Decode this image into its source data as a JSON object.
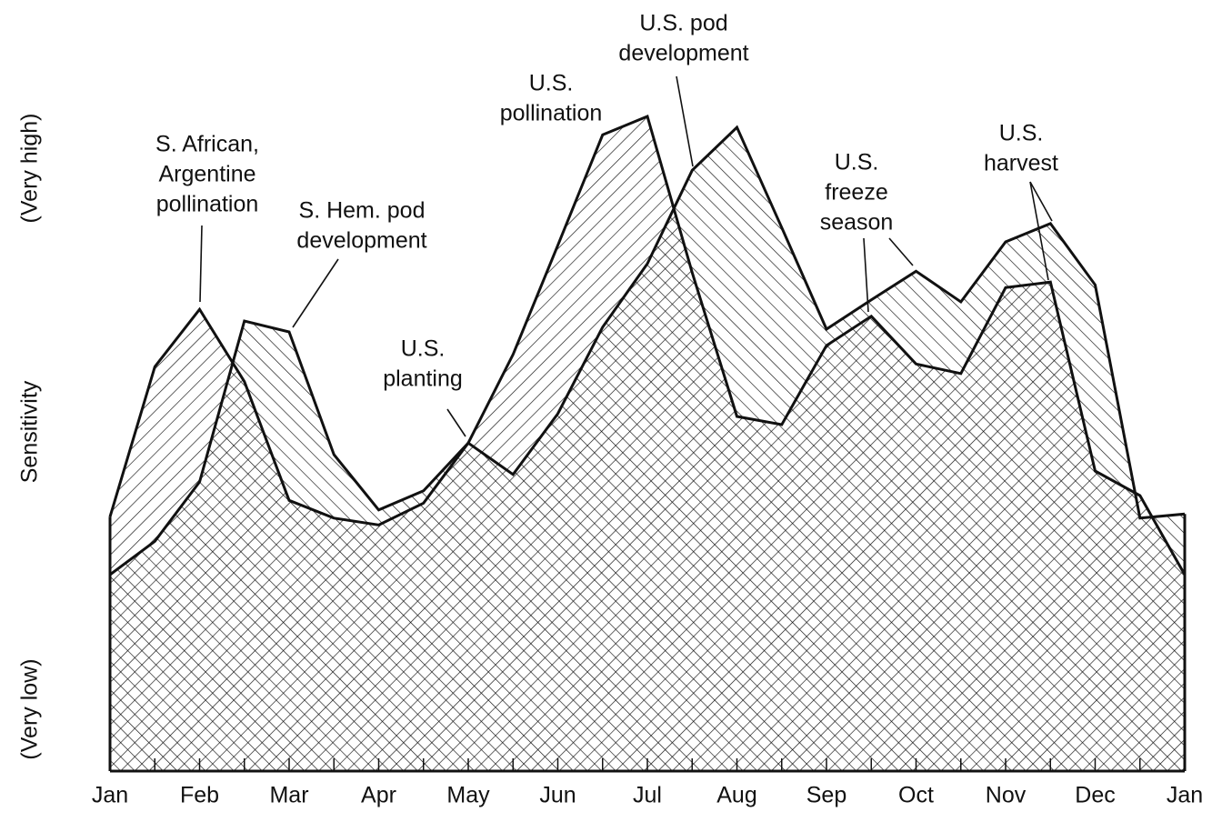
{
  "chart_data": {
    "type": "area",
    "categories": [
      "Jan",
      null,
      "Feb",
      null,
      "Mar",
      null,
      "Apr",
      null,
      "May",
      null,
      "Jun",
      null,
      "Jul",
      null,
      "Aug",
      null,
      "Sep",
      null,
      "Oct",
      null,
      "Nov",
      null,
      "Dec",
      null,
      "Jan"
    ],
    "ylim": [
      0,
      100
    ],
    "y_labels": [
      "(Very low)",
      "Sensitivity",
      "(Very high)"
    ],
    "series": [
      {
        "color": "#111111",
        "hatch": "/",
        "values": [
          37.3,
          59.3,
          67.7,
          57.1,
          39.7,
          37.1,
          36.1,
          39.3,
          48.1,
          61.1,
          77.1,
          93.3,
          96.0,
          73.1,
          52.0,
          50.8,
          62.4,
          66.7,
          59.7,
          58.3,
          70.9,
          71.7,
          44.0,
          40.4,
          28.8
        ]
      },
      {
        "color": "#111111",
        "hatch": "\\",
        "values": [
          28.8,
          33.7,
          42.4,
          66.0,
          64.4,
          46.4,
          38.3,
          41.1,
          48.1,
          43.5,
          52.4,
          65.1,
          74.4,
          88.1,
          94.4,
          79.7,
          64.8,
          69.1,
          73.3,
          68.8,
          77.6,
          80.3,
          71.3,
          37.1,
          37.7
        ]
      }
    ],
    "annotations": [
      [
        "S. African,",
        "Argentine",
        "pollination"
      ],
      [
        "S. Hem. pod",
        "development"
      ],
      [
        "U.S.",
        "planting"
      ],
      [
        "U.S.",
        "pollination"
      ],
      [
        "U.S. pod",
        "development"
      ],
      [
        "U.S.",
        "freeze",
        "season"
      ],
      [
        "U.S.",
        "harvest"
      ]
    ]
  }
}
